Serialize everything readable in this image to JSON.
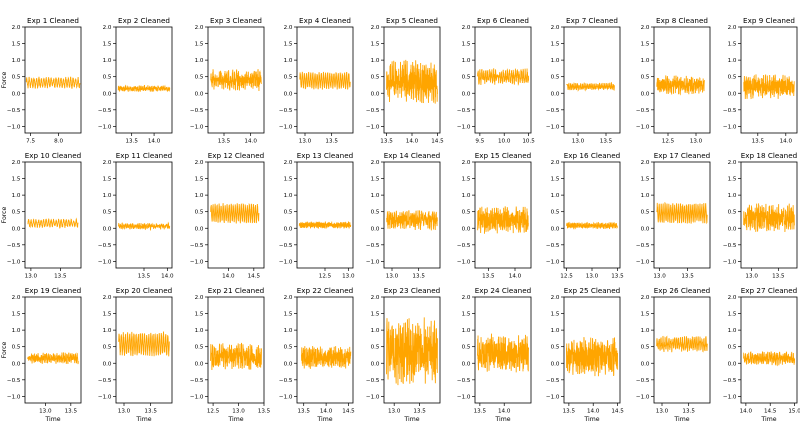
{
  "chart_data": {
    "type": "line",
    "layout": "3x9 grid of subplots",
    "line_color": "#FFA500",
    "xlabel": "Time",
    "ylabel": "Force",
    "ylim": [
      -1.2,
      2.0
    ],
    "yticks": [
      -1.0,
      -0.5,
      0.0,
      0.5,
      1.0,
      1.5,
      2.0
    ],
    "grid": false,
    "legend": "none",
    "panels": [
      {
        "title": "Exp 1 Cleaned",
        "xlim": [
          7.4,
          8.4
        ],
        "xticks": [
          7.5,
          8.0
        ],
        "x_range": [
          7.42,
          8.38
        ],
        "base": 0.32,
        "amp": 0.13,
        "noise": 0.05,
        "cycles": 22
      },
      {
        "title": "Exp 2 Cleaned",
        "xlim": [
          13.15,
          14.4
        ],
        "xticks": [
          13.5,
          14.0
        ],
        "x_range": [
          13.2,
          14.35
        ],
        "base": 0.14,
        "amp": 0.04,
        "noise": 0.06,
        "cycles": 30
      },
      {
        "title": "Exp 3 Cleaned",
        "xlim": [
          13.2,
          14.25
        ],
        "xticks": [
          13.5,
          14.0
        ],
        "x_range": [
          13.25,
          14.2
        ],
        "base": 0.4,
        "amp": 0.12,
        "noise": 0.22,
        "cycles": 26
      },
      {
        "title": "Exp 4 Cleaned",
        "xlim": [
          12.85,
          13.9
        ],
        "xticks": [
          13.0,
          13.5
        ],
        "x_range": [
          12.9,
          13.85
        ],
        "base": 0.38,
        "amp": 0.22,
        "noise": 0.05,
        "cycles": 24
      },
      {
        "title": "Exp 5 Cleaned",
        "xlim": [
          13.45,
          14.55
        ],
        "xticks": [
          13.5,
          14.0,
          14.5
        ],
        "x_range": [
          13.5,
          14.5
        ],
        "base": 0.35,
        "amp": 0.25,
        "noise": 0.45,
        "cycles": 30
      },
      {
        "title": "Exp 6 Cleaned",
        "xlim": [
          9.4,
          10.55
        ],
        "xticks": [
          9.5,
          10.0,
          10.5
        ],
        "x_range": [
          9.45,
          10.5
        ],
        "base": 0.5,
        "amp": 0.14,
        "noise": 0.12,
        "cycles": 26
      },
      {
        "title": "Exp 7 Cleaned",
        "xlim": [
          12.75,
          13.75
        ],
        "xticks": [
          13.0,
          13.5
        ],
        "x_range": [
          12.8,
          13.65
        ],
        "base": 0.2,
        "amp": 0.07,
        "noise": 0.05,
        "cycles": 28
      },
      {
        "title": "Exp 8 Cleaned",
        "xlim": [
          12.25,
          13.25
        ],
        "xticks": [
          12.5,
          13.0
        ],
        "x_range": [
          12.3,
          13.15
        ],
        "base": 0.25,
        "amp": 0.1,
        "noise": 0.2,
        "cycles": 28
      },
      {
        "title": "Exp 9 Cleaned",
        "xlim": [
          13.2,
          14.2
        ],
        "xticks": [
          13.5,
          14.0
        ],
        "x_range": [
          13.25,
          14.15
        ],
        "base": 0.2,
        "amp": 0.1,
        "noise": 0.28,
        "cycles": 26
      },
      {
        "title": "Exp 10 Cleaned",
        "xlim": [
          12.9,
          13.85
        ],
        "xticks": [
          13.0,
          13.5
        ],
        "x_range": [
          12.95,
          13.8
        ],
        "base": 0.15,
        "amp": 0.1,
        "noise": 0.04,
        "cycles": 20
      },
      {
        "title": "Exp 11 Cleaned",
        "xlim": [
          12.9,
          14.1
        ],
        "xticks": [
          13.5,
          14.0
        ],
        "x_range": [
          12.95,
          14.05
        ],
        "base": 0.06,
        "amp": 0.05,
        "noise": 0.05,
        "cycles": 30
      },
      {
        "title": "Exp 12 Cleaned",
        "xlim": [
          13.6,
          14.7
        ],
        "xticks": [
          14.0,
          14.5
        ],
        "x_range": [
          13.65,
          14.6
        ],
        "base": 0.45,
        "amp": 0.25,
        "noise": 0.06,
        "cycles": 24
      },
      {
        "title": "Exp 13 Cleaned",
        "xlim": [
          11.9,
          13.1
        ],
        "xticks": [
          12.5,
          13.0
        ],
        "x_range": [
          11.95,
          13.05
        ],
        "base": 0.1,
        "amp": 0.06,
        "noise": 0.05,
        "cycles": 40
      },
      {
        "title": "Exp 14 Cleaned",
        "xlim": [
          12.85,
          13.9
        ],
        "xticks": [
          13.0,
          13.5
        ],
        "x_range": [
          12.9,
          13.85
        ],
        "base": 0.25,
        "amp": 0.1,
        "noise": 0.22,
        "cycles": 28
      },
      {
        "title": "Exp 15 Cleaned",
        "xlim": [
          13.25,
          14.3
        ],
        "xticks": [
          13.5,
          14.0
        ],
        "x_range": [
          13.3,
          14.25
        ],
        "base": 0.25,
        "amp": 0.1,
        "noise": 0.32,
        "cycles": 28
      },
      {
        "title": "Exp 16 Cleaned",
        "xlim": [
          12.45,
          13.55
        ],
        "xticks": [
          12.5,
          13.0,
          13.5
        ],
        "x_range": [
          12.5,
          13.5
        ],
        "base": 0.08,
        "amp": 0.06,
        "noise": 0.04,
        "cycles": 34
      },
      {
        "title": "Exp 17 Cleaned",
        "xlim": [
          12.9,
          13.9
        ],
        "xticks": [
          13.0,
          13.5
        ],
        "x_range": [
          12.95,
          13.85
        ],
        "base": 0.45,
        "amp": 0.25,
        "noise": 0.07,
        "cycles": 26
      },
      {
        "title": "Exp 18 Cleaned",
        "xlim": [
          12.8,
          13.85
        ],
        "xticks": [
          13.0,
          13.5
        ],
        "x_range": [
          12.85,
          13.8
        ],
        "base": 0.32,
        "amp": 0.12,
        "noise": 0.32,
        "cycles": 28
      },
      {
        "title": "Exp 19 Cleaned",
        "xlim": [
          12.6,
          13.7
        ],
        "xticks": [
          13.0,
          13.5
        ],
        "x_range": [
          12.65,
          13.65
        ],
        "base": 0.15,
        "amp": 0.08,
        "noise": 0.1,
        "cycles": 30
      },
      {
        "title": "Exp 20 Cleaned",
        "xlim": [
          12.85,
          13.9
        ],
        "xticks": [
          13.0,
          13.5
        ],
        "x_range": [
          12.9,
          13.85
        ],
        "base": 0.58,
        "amp": 0.3,
        "noise": 0.08,
        "cycles": 24
      },
      {
        "title": "Exp 21 Cleaned",
        "xlim": [
          12.4,
          13.5
        ],
        "xticks": [
          12.5,
          13.0,
          13.5
        ],
        "x_range": [
          12.45,
          13.45
        ],
        "base": 0.2,
        "amp": 0.12,
        "noise": 0.3,
        "cycles": 30
      },
      {
        "title": "Exp 22 Cleaned",
        "xlim": [
          13.35,
          14.6
        ],
        "xticks": [
          13.5,
          14.0,
          14.5
        ],
        "x_range": [
          13.45,
          14.55
        ],
        "base": 0.18,
        "amp": 0.1,
        "noise": 0.25,
        "cycles": 32
      },
      {
        "title": "Exp 23 Cleaned",
        "xlim": [
          12.8,
          13.9
        ],
        "xticks": [
          13.0,
          13.5
        ],
        "x_range": [
          12.85,
          13.85
        ],
        "base": 0.35,
        "amp": 0.3,
        "noise": 0.75,
        "cycles": 30
      },
      {
        "title": "Exp 24 Cleaned",
        "xlim": [
          13.4,
          14.55
        ],
        "xticks": [
          13.5,
          14.0
        ],
        "x_range": [
          13.45,
          14.5
        ],
        "base": 0.3,
        "amp": 0.15,
        "noise": 0.45,
        "cycles": 30
      },
      {
        "title": "Exp 25 Cleaned",
        "xlim": [
          13.4,
          14.55
        ],
        "xticks": [
          13.5,
          14.0,
          14.5
        ],
        "x_range": [
          13.45,
          14.5
        ],
        "base": 0.2,
        "amp": 0.15,
        "noise": 0.45,
        "cycles": 30
      },
      {
        "title": "Exp 26 Cleaned",
        "xlim": [
          12.85,
          13.9
        ],
        "xticks": [
          13.0,
          13.5
        ],
        "x_range": [
          12.9,
          13.85
        ],
        "base": 0.58,
        "amp": 0.15,
        "noise": 0.1,
        "cycles": 26
      },
      {
        "title": "Exp 27 Cleaned",
        "xlim": [
          13.9,
          15.05
        ],
        "xticks": [
          14.0,
          14.5,
          15.0
        ],
        "x_range": [
          13.95,
          15.0
        ],
        "base": 0.15,
        "amp": 0.1,
        "noise": 0.12,
        "cycles": 30
      }
    ]
  }
}
